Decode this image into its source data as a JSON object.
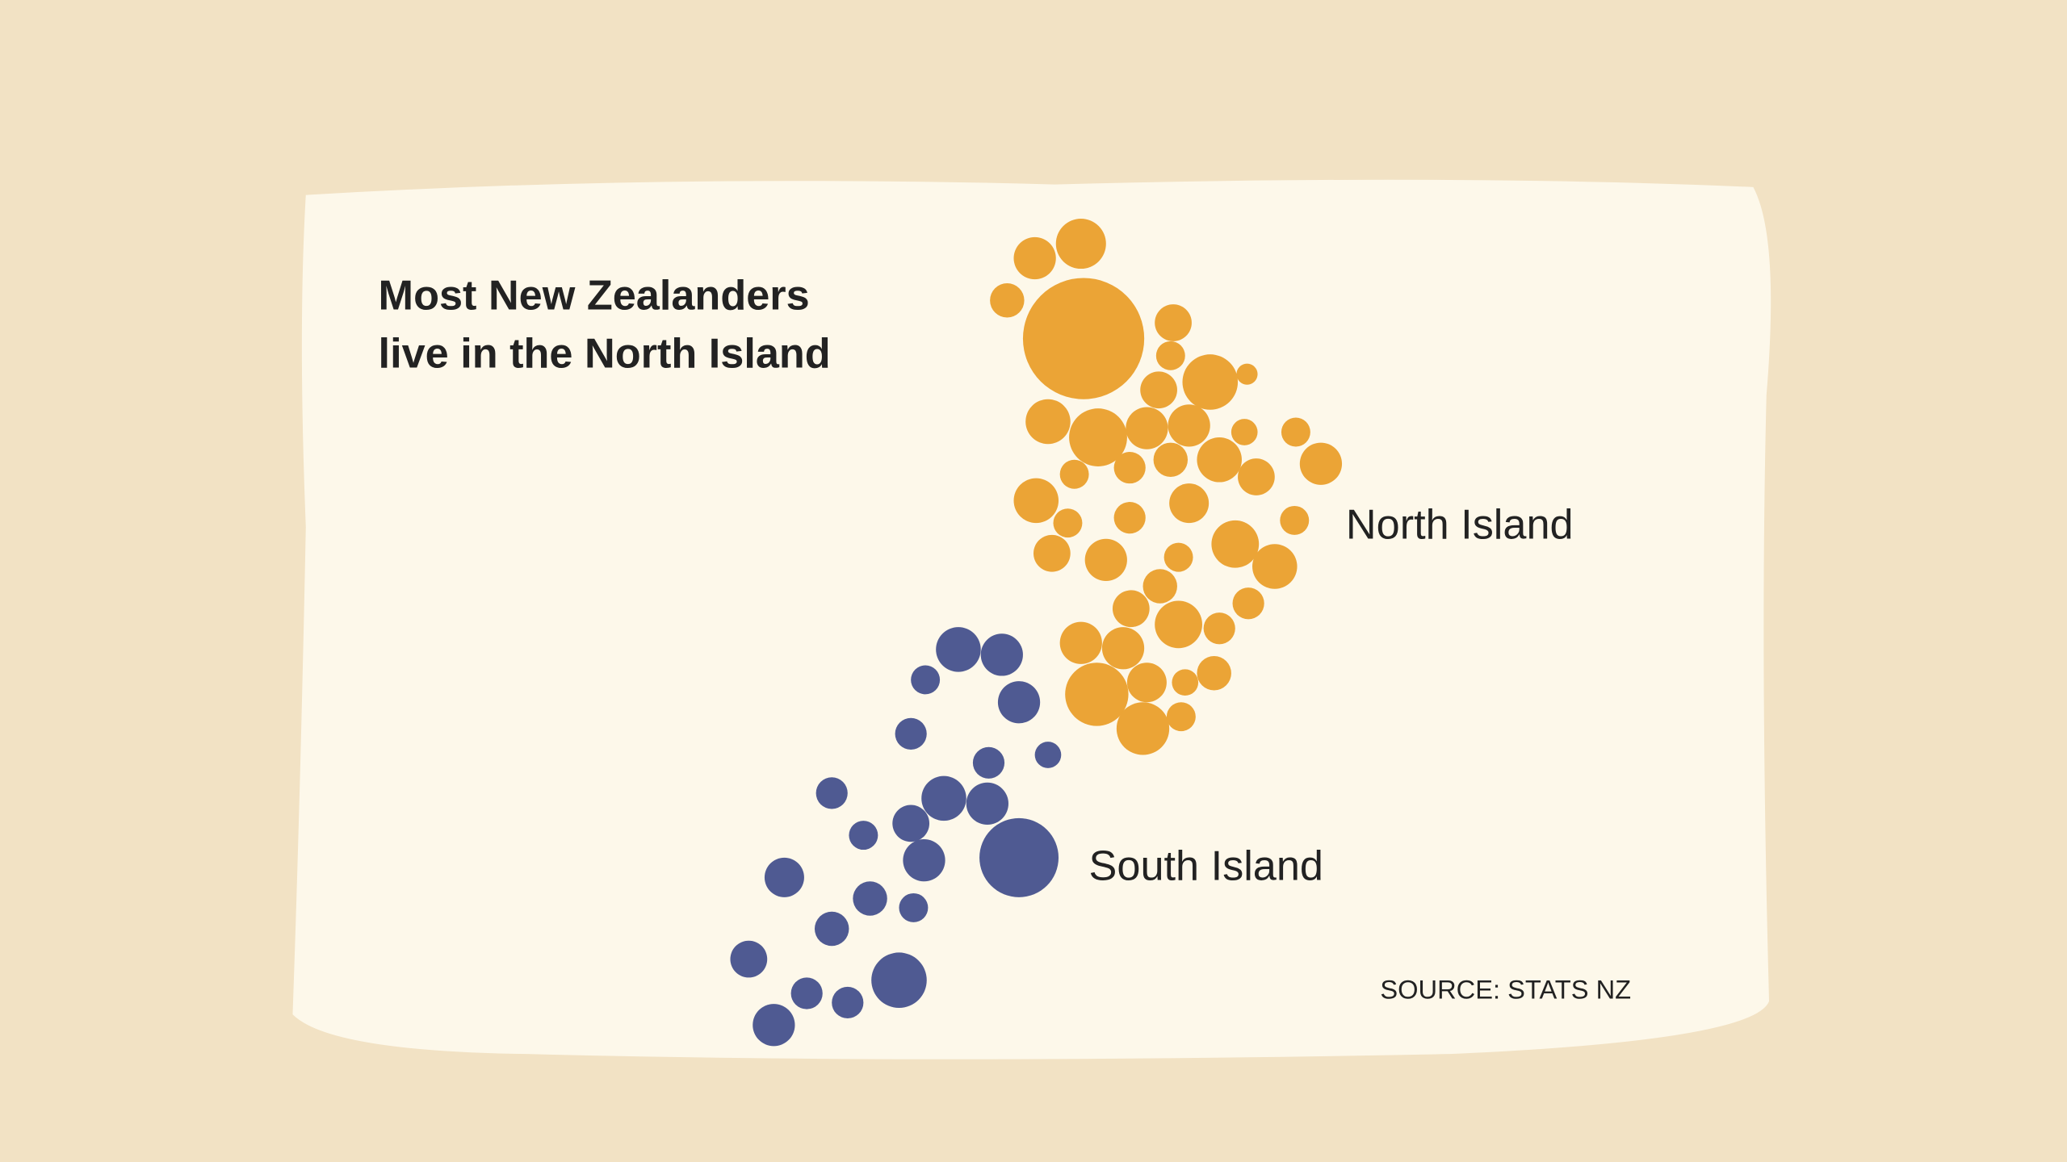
{
  "title": [
    "Most New Zealanders",
    "live in the North Island"
  ],
  "labels": {
    "north": "North Island",
    "south": "South Island"
  },
  "source": "SOURCE: STATS NZ"
}
